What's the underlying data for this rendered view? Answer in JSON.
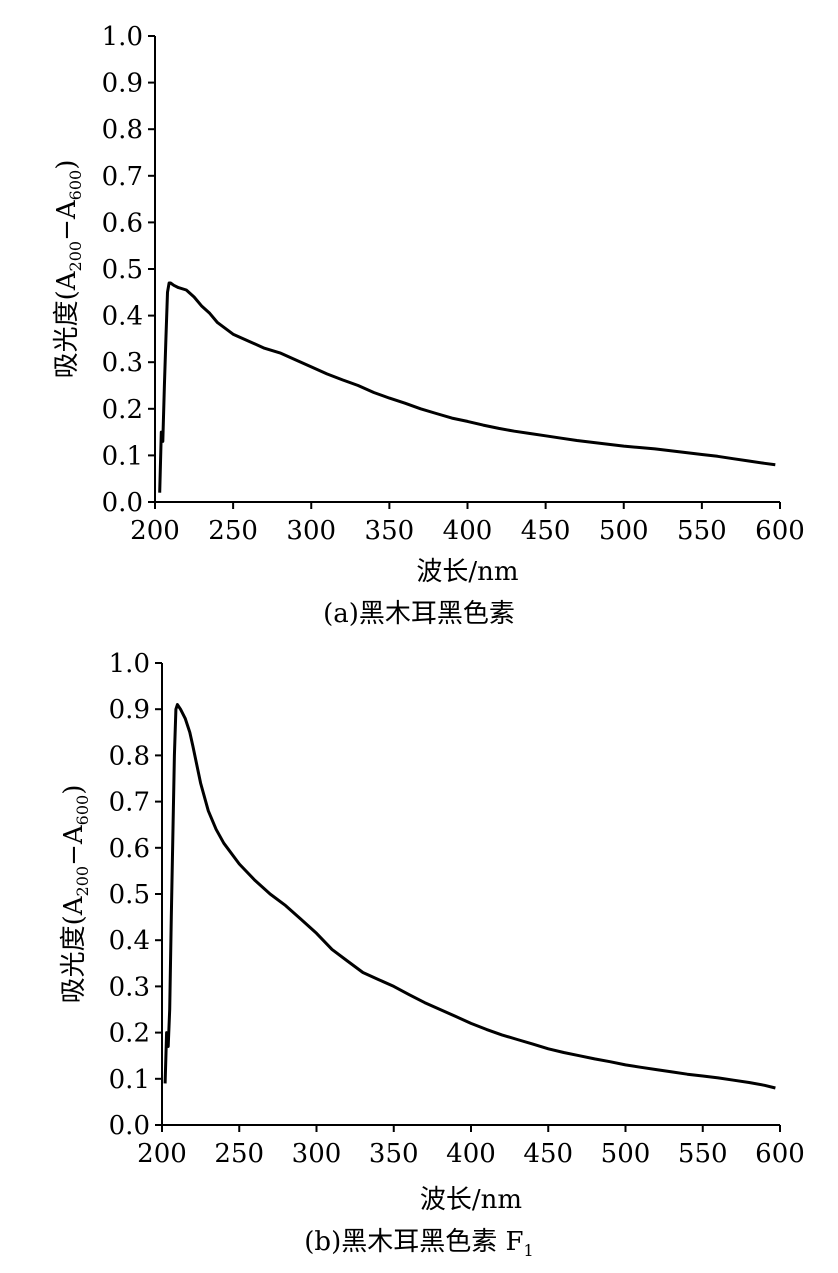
{
  "chart_data": [
    {
      "type": "line",
      "caption": "(a)黑木耳黑色素",
      "xlabel": "波长/nm",
      "ylabel": {
        "prefix": "吸光度(A",
        "sub1": "200",
        "mid": "−A",
        "sub2": "600",
        "suffix": ")"
      },
      "xlim": [
        200,
        600
      ],
      "ylim": [
        0,
        1.0
      ],
      "xticks": [
        "200",
        "250",
        "300",
        "350",
        "400",
        "450",
        "500",
        "550",
        "600"
      ],
      "yticks": [
        "0.0",
        "0.1",
        "0.2",
        "0.3",
        "0.4",
        "0.5",
        "0.6",
        "0.7",
        "0.8",
        "0.9",
        "1.0"
      ],
      "grid": false,
      "series": [
        {
          "x": [
            203,
            204,
            205,
            206,
            207,
            208,
            209,
            210,
            212,
            215,
            220,
            225,
            230,
            235,
            240,
            250,
            260,
            270,
            280,
            290,
            300,
            310,
            320,
            330,
            340,
            350,
            360,
            370,
            380,
            390,
            400,
            410,
            420,
            430,
            440,
            450,
            460,
            470,
            480,
            490,
            500,
            510,
            520,
            530,
            540,
            550,
            560,
            570,
            580,
            590,
            597
          ],
          "y": [
            0.02,
            0.15,
            0.13,
            0.25,
            0.35,
            0.45,
            0.47,
            0.47,
            0.465,
            0.46,
            0.455,
            0.44,
            0.42,
            0.405,
            0.385,
            0.36,
            0.345,
            0.33,
            0.32,
            0.305,
            0.29,
            0.275,
            0.262,
            0.25,
            0.235,
            0.223,
            0.212,
            0.2,
            0.19,
            0.18,
            0.173,
            0.165,
            0.158,
            0.152,
            0.147,
            0.142,
            0.137,
            0.132,
            0.128,
            0.124,
            0.12,
            0.117,
            0.114,
            0.11,
            0.106,
            0.102,
            0.098,
            0.093,
            0.088,
            0.083,
            0.08
          ]
        }
      ]
    },
    {
      "type": "line",
      "caption": "(b)黑木耳黑色素 F",
      "caption_sub": "1",
      "xlabel": "波长/nm",
      "ylabel": {
        "prefix": "吸光度(A",
        "sub1": "200",
        "mid": "−A",
        "sub2": "600",
        "suffix": ")"
      },
      "xlim": [
        200,
        600
      ],
      "ylim": [
        0,
        1.0
      ],
      "xticks": [
        "200",
        "250",
        "300",
        "350",
        "400",
        "450",
        "500",
        "550",
        "600"
      ],
      "yticks": [
        "0.0",
        "0.1",
        "0.2",
        "0.3",
        "0.4",
        "0.5",
        "0.6",
        "0.7",
        "0.8",
        "0.9",
        "1.0"
      ],
      "grid": false,
      "series": [
        {
          "x": [
            202,
            203,
            204,
            205,
            206,
            207,
            208,
            209,
            210,
            212,
            215,
            218,
            220,
            225,
            230,
            235,
            240,
            250,
            260,
            270,
            280,
            290,
            300,
            310,
            320,
            330,
            340,
            350,
            360,
            370,
            380,
            390,
            400,
            410,
            420,
            430,
            440,
            450,
            460,
            470,
            480,
            490,
            500,
            510,
            520,
            530,
            540,
            550,
            560,
            570,
            580,
            590,
            597
          ],
          "y": [
            0.09,
            0.2,
            0.17,
            0.25,
            0.45,
            0.62,
            0.8,
            0.9,
            0.91,
            0.9,
            0.88,
            0.85,
            0.82,
            0.74,
            0.68,
            0.64,
            0.61,
            0.565,
            0.53,
            0.5,
            0.475,
            0.445,
            0.415,
            0.38,
            0.355,
            0.33,
            0.315,
            0.3,
            0.282,
            0.265,
            0.25,
            0.235,
            0.22,
            0.207,
            0.195,
            0.185,
            0.175,
            0.165,
            0.157,
            0.15,
            0.143,
            0.137,
            0.13,
            0.125,
            0.12,
            0.115,
            0.11,
            0.106,
            0.102,
            0.097,
            0.092,
            0.086,
            0.08
          ]
        }
      ]
    }
  ]
}
